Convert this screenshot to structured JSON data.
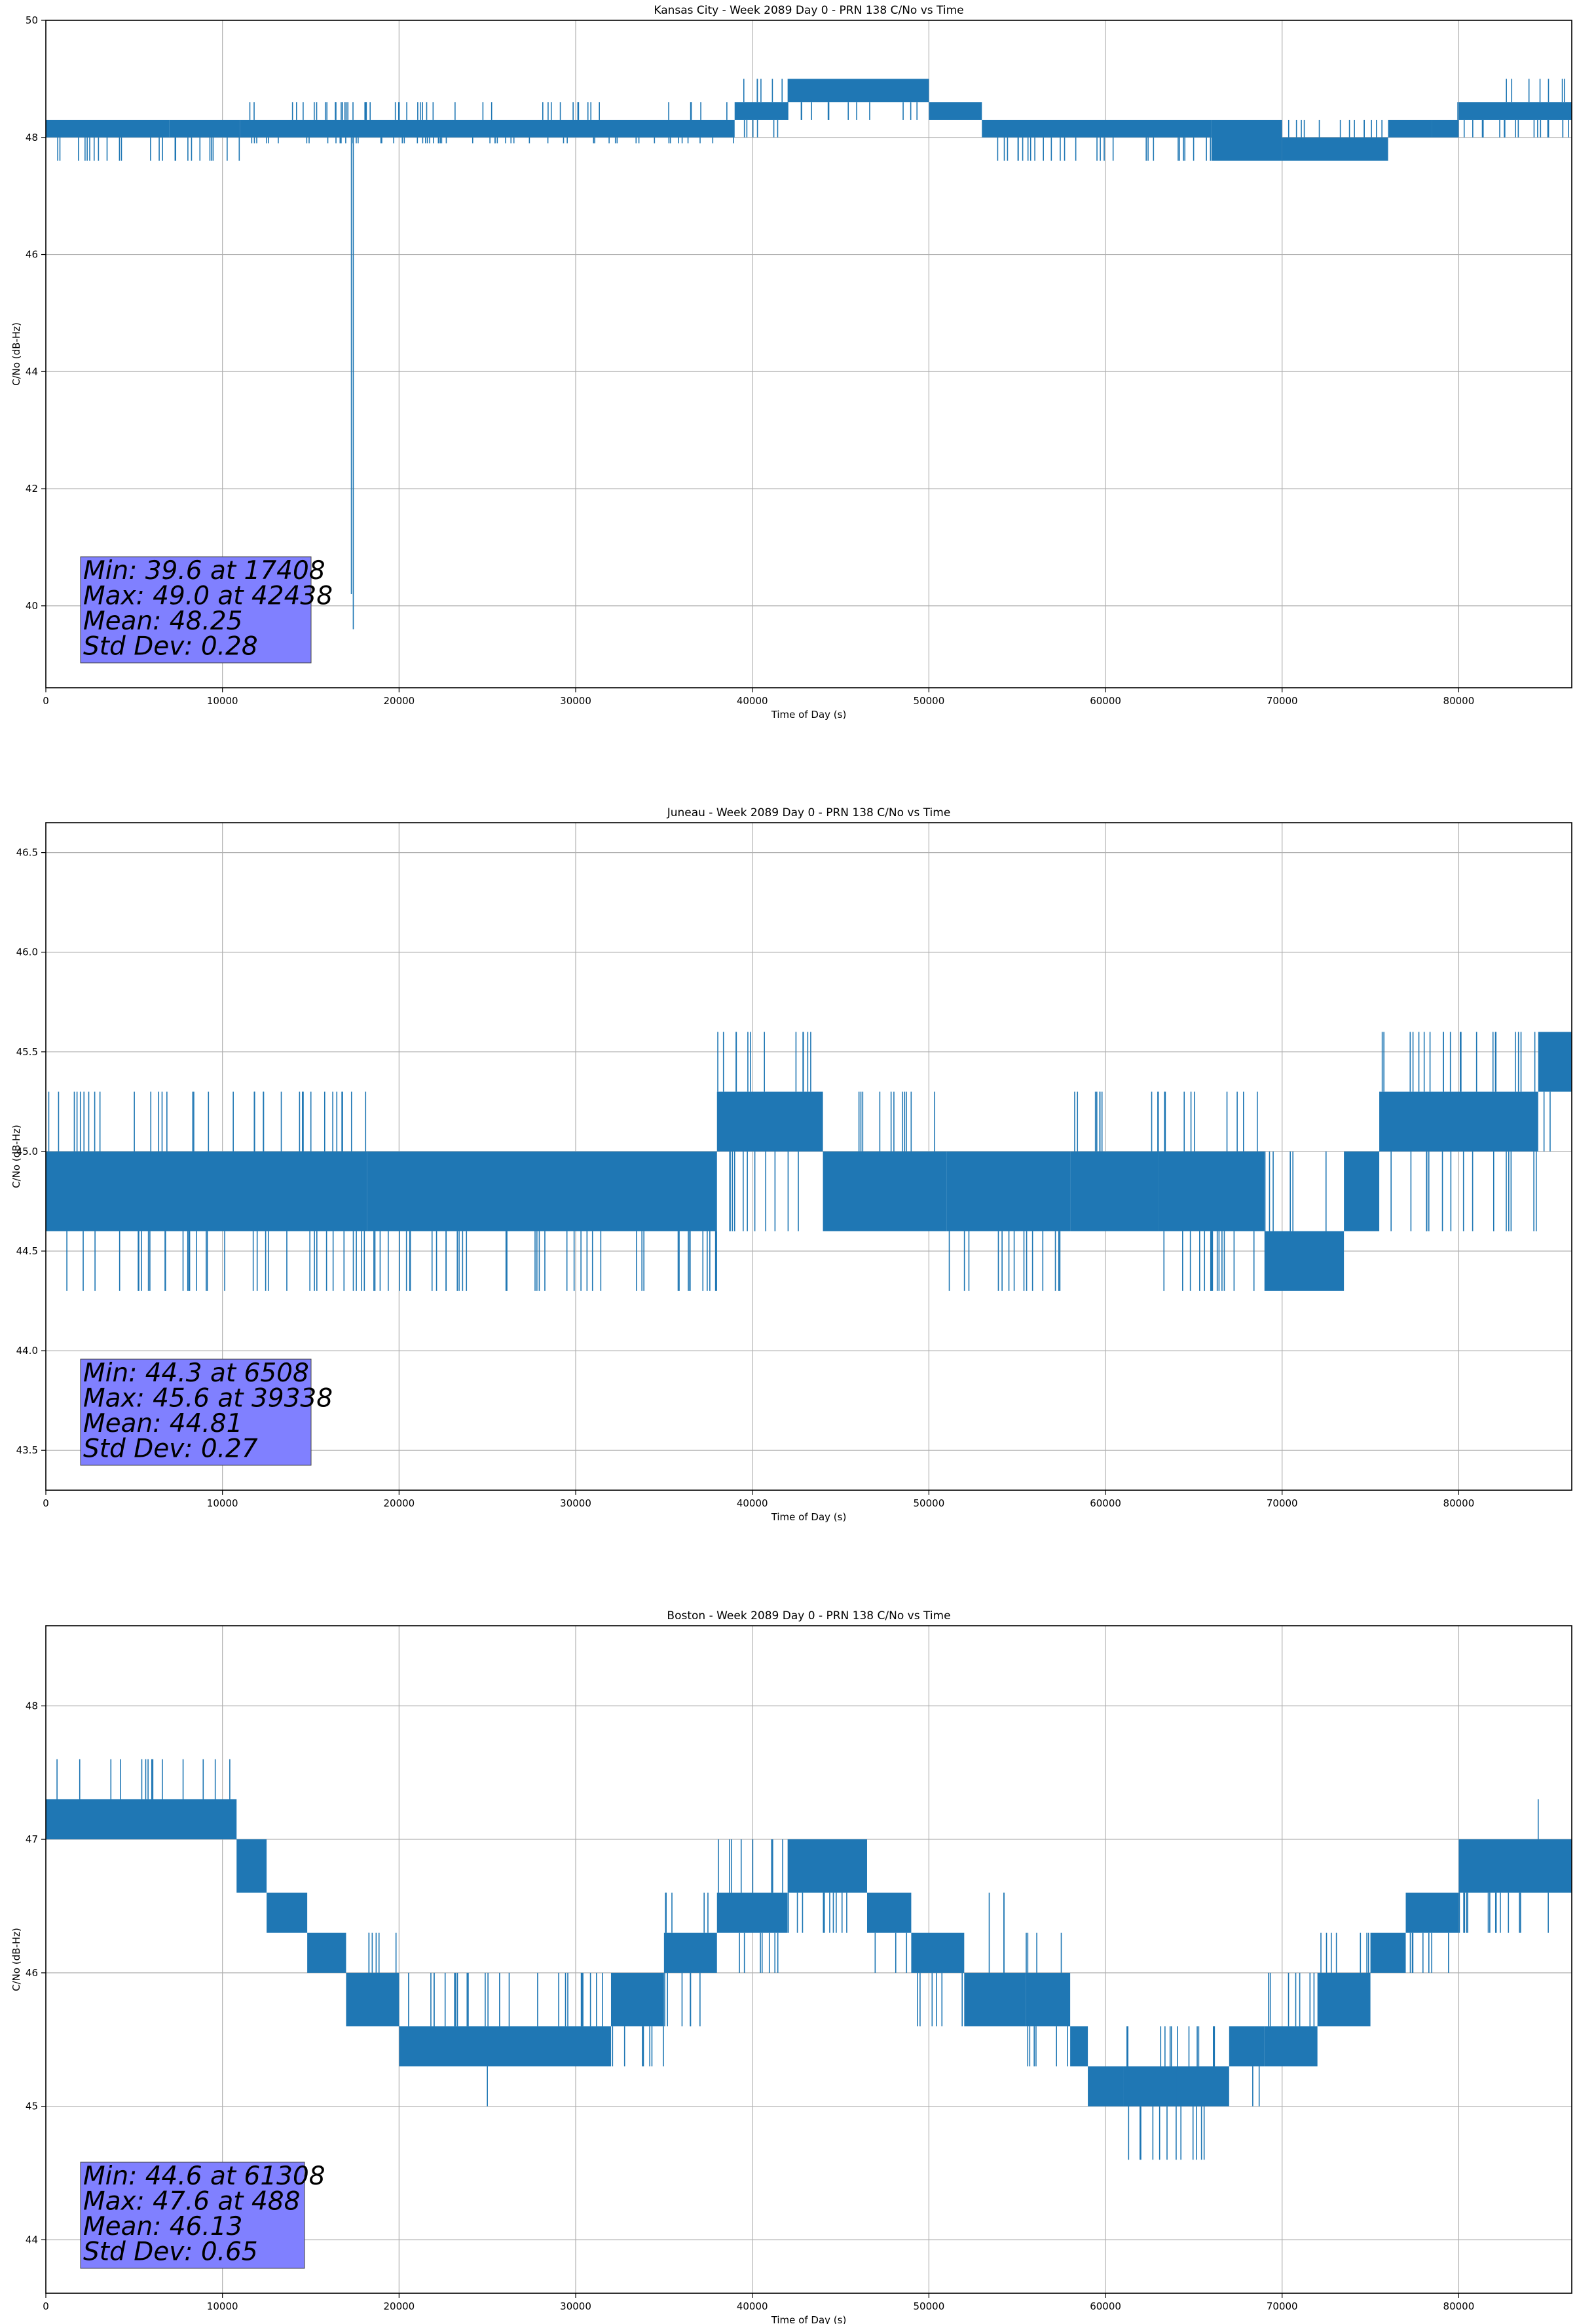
{
  "chart_data": [
    {
      "type": "line",
      "title": "Kansas City - Week 2089 Day 0 - PRN 138 C/No vs Time",
      "xlabel": "Time of Day (s)",
      "ylabel": "C/No (dB-Hz)",
      "xlim": [
        0,
        86400
      ],
      "ylim": [
        38.6,
        50.0
      ],
      "xticks": [
        0,
        10000,
        20000,
        30000,
        40000,
        50000,
        60000,
        70000,
        80000
      ],
      "yticks": [
        40,
        42,
        44,
        46,
        48,
        50
      ],
      "ytick_labels": [
        "40",
        "42",
        "44",
        "46",
        "48",
        "50"
      ],
      "grid": true,
      "series_color": "#1f77b4",
      "stats_box_color": "#8080ff",
      "stats": [
        "Min: 39.6 at 17408",
        "Max: 49.0 at 42438",
        "Mean: 48.25",
        "Std Dev: 0.28"
      ],
      "segments": [
        {
          "x0": 0,
          "x1": 7000,
          "lo": 48.0,
          "hi": 48.3,
          "up": 48.3,
          "down": 47.6
        },
        {
          "x0": 7000,
          "x1": 11000,
          "lo": 48.0,
          "hi": 48.3,
          "up": 48.3,
          "down": 47.6
        },
        {
          "x0": 11000,
          "x1": 39000,
          "lo": 48.0,
          "hi": 48.3,
          "up": 48.6,
          "down": 47.9
        },
        {
          "x0": 39000,
          "x1": 42000,
          "lo": 48.3,
          "hi": 48.6,
          "up": 49.0,
          "down": 48.0
        },
        {
          "x0": 42000,
          "x1": 50000,
          "lo": 48.6,
          "hi": 49.0,
          "up": 49.0,
          "down": 48.3
        },
        {
          "x0": 50000,
          "x1": 53000,
          "lo": 48.3,
          "hi": 48.6,
          "up": 48.6,
          "down": 48.3
        },
        {
          "x0": 53000,
          "x1": 66000,
          "lo": 48.0,
          "hi": 48.3,
          "up": 48.3,
          "down": 47.6
        },
        {
          "x0": 66000,
          "x1": 70000,
          "lo": 47.6,
          "hi": 48.3,
          "up": 48.3,
          "down": 47.6
        },
        {
          "x0": 70000,
          "x1": 76000,
          "lo": 47.6,
          "hi": 48.0,
          "up": 48.3,
          "down": 47.6
        },
        {
          "x0": 76000,
          "x1": 78500,
          "lo": 48.0,
          "hi": 48.3,
          "up": 48.3,
          "down": 48.0
        },
        {
          "x0": 78500,
          "x1": 80000,
          "lo": 48.0,
          "hi": 48.3,
          "up": 48.6,
          "down": 48.0
        },
        {
          "x0": 80000,
          "x1": 86400,
          "lo": 48.3,
          "hi": 48.6,
          "up": 49.0,
          "down": 48.0
        }
      ],
      "spikes": [
        {
          "x": 17408,
          "y0": 39.6,
          "y1": 48.0
        },
        {
          "x": 17300,
          "y0": 40.2,
          "y1": 48.0
        }
      ]
    },
    {
      "type": "line",
      "title": "Juneau - Week 2089 Day 0 - PRN 138 C/No vs Time",
      "xlabel": "Time of Day (s)",
      "ylabel": "C/No (dB-Hz)",
      "xlim": [
        0,
        86400
      ],
      "ylim": [
        43.3,
        46.65
      ],
      "xticks": [
        0,
        10000,
        20000,
        30000,
        40000,
        50000,
        60000,
        70000,
        80000
      ],
      "yticks": [
        43.5,
        44.0,
        44.5,
        45.0,
        45.5,
        46.0,
        46.5
      ],
      "ytick_labels": [
        "43.5",
        "44.0",
        "44.5",
        "45.0",
        "45.5",
        "46.0",
        "46.5"
      ],
      "grid": true,
      "series_color": "#1f77b4",
      "stats_box_color": "#8080ff",
      "stats": [
        "Min: 44.3 at 6508",
        "Max: 45.6 at 39338",
        "Mean: 44.81",
        "Std Dev: 0.27"
      ],
      "segments": [
        {
          "x0": 0,
          "x1": 18200,
          "lo": 44.6,
          "hi": 45.0,
          "up": 45.3,
          "down": 44.3
        },
        {
          "x0": 18200,
          "x1": 38000,
          "lo": 44.6,
          "hi": 45.0,
          "up": 45.0,
          "down": 44.3
        },
        {
          "x0": 38000,
          "x1": 44000,
          "lo": 45.0,
          "hi": 45.3,
          "up": 45.6,
          "down": 44.6
        },
        {
          "x0": 44000,
          "x1": 51000,
          "lo": 44.6,
          "hi": 45.0,
          "up": 45.3,
          "down": 44.6
        },
        {
          "x0": 51000,
          "x1": 58000,
          "lo": 44.6,
          "hi": 45.0,
          "up": 45.0,
          "down": 44.3
        },
        {
          "x0": 58000,
          "x1": 63000,
          "lo": 44.6,
          "hi": 45.0,
          "up": 45.3,
          "down": 44.6
        },
        {
          "x0": 63000,
          "x1": 69000,
          "lo": 44.6,
          "hi": 45.0,
          "up": 45.3,
          "down": 44.3
        },
        {
          "x0": 69000,
          "x1": 73500,
          "lo": 44.3,
          "hi": 44.6,
          "up": 45.0,
          "down": 44.3
        },
        {
          "x0": 73500,
          "x1": 75500,
          "lo": 44.6,
          "hi": 45.0,
          "up": 45.0,
          "down": 44.6
        },
        {
          "x0": 75500,
          "x1": 84500,
          "lo": 45.0,
          "hi": 45.3,
          "up": 45.6,
          "down": 44.6
        },
        {
          "x0": 84500,
          "x1": 86400,
          "lo": 45.3,
          "hi": 45.6,
          "up": 45.6,
          "down": 45.0
        }
      ],
      "spikes": []
    },
    {
      "type": "line",
      "title": "Boston - Week 2089 Day 0 - PRN 138 C/No vs Time",
      "xlabel": "Time of Day (s)",
      "ylabel": "C/No (dB-Hz)",
      "xlim": [
        0,
        86400
      ],
      "ylim": [
        43.6,
        48.6
      ],
      "xticks": [
        0,
        10000,
        20000,
        30000,
        40000,
        50000,
        60000,
        70000,
        80000
      ],
      "yticks": [
        44,
        45,
        46,
        47,
        48
      ],
      "ytick_labels": [
        "44",
        "45",
        "46",
        "47",
        "48"
      ],
      "grid": true,
      "series_color": "#1f77b4",
      "stats_box_color": "#8080ff",
      "stats": [
        "Min: 44.6 at 61308",
        "Max: 47.6 at 488",
        "Mean: 46.13",
        "Std Dev: 0.65"
      ],
      "segments": [
        {
          "x0": 0,
          "x1": 10800,
          "lo": 47.0,
          "hi": 47.3,
          "up": 47.6,
          "down": 47.0
        },
        {
          "x0": 10800,
          "x1": 12500,
          "lo": 46.6,
          "hi": 47.0,
          "up": 47.0,
          "down": 46.6
        },
        {
          "x0": 12500,
          "x1": 14800,
          "lo": 46.3,
          "hi": 46.6,
          "up": 46.6,
          "down": 46.3
        },
        {
          "x0": 14800,
          "x1": 17000,
          "lo": 46.0,
          "hi": 46.3,
          "up": 46.3,
          "down": 46.0
        },
        {
          "x0": 17000,
          "x1": 20000,
          "lo": 45.6,
          "hi": 46.0,
          "up": 46.3,
          "down": 45.6
        },
        {
          "x0": 20000,
          "x1": 32000,
          "lo": 45.3,
          "hi": 45.6,
          "up": 46.0,
          "down": 45.3
        },
        {
          "x0": 32000,
          "x1": 35000,
          "lo": 45.6,
          "hi": 46.0,
          "up": 46.0,
          "down": 45.3
        },
        {
          "x0": 35000,
          "x1": 38000,
          "lo": 46.0,
          "hi": 46.3,
          "up": 46.6,
          "down": 45.6
        },
        {
          "x0": 38000,
          "x1": 42000,
          "lo": 46.3,
          "hi": 46.6,
          "up": 47.0,
          "down": 46.0
        },
        {
          "x0": 42000,
          "x1": 46500,
          "lo": 46.6,
          "hi": 47.0,
          "up": 47.0,
          "down": 46.3
        },
        {
          "x0": 46500,
          "x1": 49000,
          "lo": 46.3,
          "hi": 46.6,
          "up": 46.6,
          "down": 46.0
        },
        {
          "x0": 49000,
          "x1": 52000,
          "lo": 46.0,
          "hi": 46.3,
          "up": 46.3,
          "down": 45.6
        },
        {
          "x0": 52000,
          "x1": 55500,
          "lo": 45.6,
          "hi": 46.0,
          "up": 46.6,
          "down": 45.6
        },
        {
          "x0": 55500,
          "x1": 58000,
          "lo": 45.6,
          "hi": 46.0,
          "up": 46.3,
          "down": 45.3
        },
        {
          "x0": 58000,
          "x1": 59000,
          "lo": 45.3,
          "hi": 45.6,
          "up": 45.6,
          "down": 45.0
        },
        {
          "x0": 59000,
          "x1": 61000,
          "lo": 45.0,
          "hi": 45.3,
          "up": 45.3,
          "down": 45.0
        },
        {
          "x0": 61000,
          "x1": 67000,
          "lo": 45.0,
          "hi": 45.3,
          "up": 45.6,
          "down": 44.6
        },
        {
          "x0": 67000,
          "x1": 69000,
          "lo": 45.3,
          "hi": 45.6,
          "up": 45.6,
          "down": 45.0
        },
        {
          "x0": 69000,
          "x1": 72000,
          "lo": 45.3,
          "hi": 45.6,
          "up": 46.0,
          "down": 45.3
        },
        {
          "x0": 72000,
          "x1": 75000,
          "lo": 45.6,
          "hi": 46.0,
          "up": 46.3,
          "down": 45.6
        },
        {
          "x0": 75000,
          "x1": 77000,
          "lo": 46.0,
          "hi": 46.3,
          "up": 46.3,
          "down": 46.0
        },
        {
          "x0": 77000,
          "x1": 80000,
          "lo": 46.3,
          "hi": 46.6,
          "up": 46.6,
          "down": 46.0
        },
        {
          "x0": 80000,
          "x1": 86400,
          "lo": 46.6,
          "hi": 47.0,
          "up": 47.0,
          "down": 46.3
        }
      ],
      "spikes": [
        {
          "x": 61308,
          "y0": 44.6,
          "y1": 45.3
        },
        {
          "x": 64000,
          "y0": 44.6,
          "y1": 45.3
        },
        {
          "x": 25000,
          "y0": 45.0,
          "y1": 45.3
        },
        {
          "x": 84500,
          "y0": 47.0,
          "y1": 47.3
        }
      ]
    }
  ]
}
